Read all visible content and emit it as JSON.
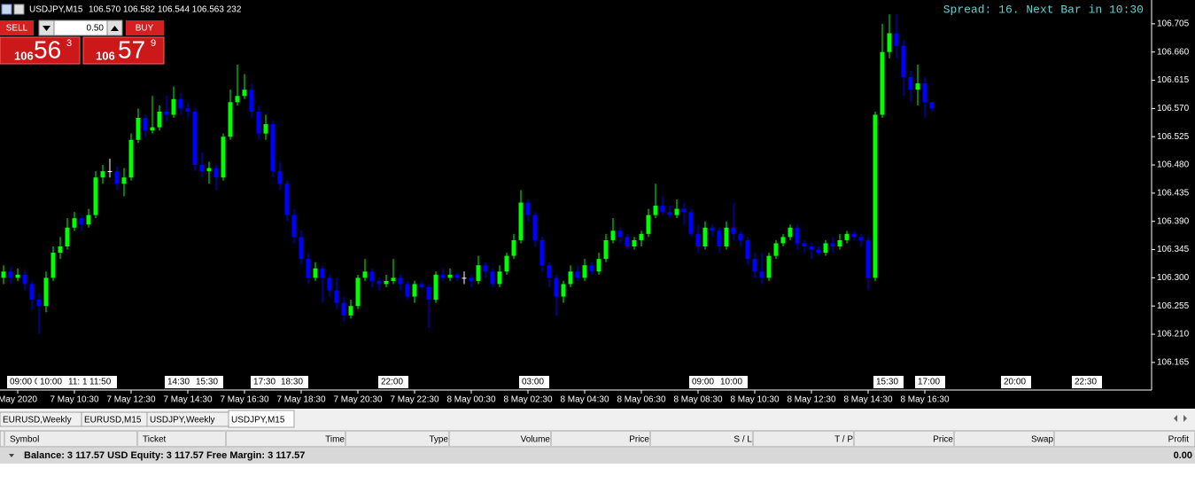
{
  "chart_data": {
    "type": "candlestick",
    "symbol": "USDJPY,M15",
    "ohlc_text": "106.570 106.582 106.544 106.563 232",
    "spread_text": "Spread: 16. Next Bar in 10:30",
    "bull_color": "#00ff00",
    "bear_color": "#0000ff",
    "ylim": [
      106.121,
      106.743
    ],
    "yticks": [
      {
        "value": 106.705,
        "label": "106.705"
      },
      {
        "value": 106.66,
        "label": "106.660"
      },
      {
        "value": 106.615,
        "label": "106.615"
      },
      {
        "value": 106.57,
        "label": "106.570"
      },
      {
        "value": 106.525,
        "label": "106.525"
      },
      {
        "value": 106.48,
        "label": "106.480"
      },
      {
        "value": 106.435,
        "label": "106.435"
      },
      {
        "value": 106.39,
        "label": "106.390"
      },
      {
        "value": 106.345,
        "label": "106.345"
      },
      {
        "value": 106.3,
        "label": "106.300"
      },
      {
        "value": 106.255,
        "label": "106.255"
      },
      {
        "value": 106.21,
        "label": "106.210"
      },
      {
        "value": 106.165,
        "label": "106.165"
      }
    ],
    "x_labels": [
      "May 2020",
      "7 May 10:30",
      "7 May 12:30",
      "7 May 14:30",
      "7 May 16:30",
      "7 May 18:30",
      "7 May 20:30",
      "7 May 22:30",
      "8 May 00:30",
      "8 May 02:30",
      "8 May 04:30",
      "8 May 06:30",
      "8 May 08:30",
      "8 May 10:30",
      "8 May 12:30",
      "8 May 14:30",
      "8 May 16:30"
    ],
    "line_labels": [
      "09:00",
      "0",
      "10:00",
      "11:",
      "1",
      "11:50",
      "14:30",
      "15:30",
      "17:30",
      "18:30",
      "22:00",
      "03:00",
      "09:00",
      "10:00",
      "15:30",
      "17:00",
      "20:00",
      "22:30"
    ],
    "open": [
      106.3,
      106.31,
      106.3,
      106.305,
      106.29,
      106.265,
      106.255,
      106.3,
      106.34,
      106.35,
      106.38,
      106.395,
      106.385,
      106.4,
      106.46,
      106.47,
      106.47,
      106.45,
      106.46,
      106.52,
      106.555,
      106.535,
      106.54,
      106.565,
      106.56,
      106.585,
      106.57,
      106.565,
      106.48,
      106.47,
      106.475,
      106.46,
      106.525,
      106.58,
      106.59,
      106.6,
      106.565,
      106.53,
      106.545,
      106.47,
      106.45,
      106.4,
      106.365,
      106.33,
      106.3,
      106.315,
      106.3,
      106.28,
      106.26,
      106.24,
      106.255,
      106.3,
      106.31,
      106.295,
      106.29,
      106.295,
      106.3,
      106.29,
      106.27,
      106.29,
      106.285,
      106.265,
      106.305,
      106.3,
      106.305,
      106.3,
      106.3,
      106.295,
      106.32,
      106.31,
      106.29,
      106.31,
      106.335,
      106.36,
      106.42,
      106.4,
      106.36,
      106.32,
      106.3,
      106.27,
      106.29,
      106.31,
      106.3,
      106.32,
      106.31,
      106.33,
      106.36,
      106.375,
      106.365,
      106.35,
      106.36,
      106.37,
      106.4,
      106.415,
      106.405,
      106.4,
      106.41,
      106.405,
      106.37,
      106.35,
      106.38,
      106.375,
      106.35,
      106.38,
      106.37,
      106.36,
      106.33,
      106.31,
      106.3,
      106.335,
      106.355,
      106.365,
      106.38,
      106.355,
      106.35,
      106.345,
      106.34,
      106.355,
      106.35,
      106.36,
      106.37,
      106.365,
      106.36,
      106.3,
      106.56,
      106.66,
      106.69,
      106.67,
      106.62,
      106.6,
      106.61,
      106.58
    ],
    "high": [
      106.32,
      106.318,
      106.315,
      106.312,
      106.295,
      106.275,
      106.31,
      106.35,
      106.365,
      106.395,
      106.405,
      106.4,
      106.41,
      106.47,
      106.48,
      106.49,
      106.478,
      106.475,
      106.53,
      106.57,
      106.56,
      106.59,
      106.575,
      106.59,
      106.605,
      106.595,
      106.58,
      106.57,
      106.5,
      106.485,
      106.48,
      106.53,
      106.6,
      106.64,
      106.625,
      106.61,
      106.575,
      106.56,
      106.55,
      106.485,
      106.455,
      106.41,
      106.375,
      106.34,
      106.325,
      106.32,
      106.305,
      106.3,
      106.27,
      106.265,
      106.305,
      106.33,
      106.315,
      106.3,
      106.305,
      106.33,
      106.305,
      106.295,
      106.295,
      106.295,
      106.29,
      106.31,
      106.315,
      106.315,
      106.308,
      106.31,
      106.305,
      106.335,
      106.325,
      106.315,
      106.32,
      106.34,
      106.37,
      106.44,
      106.425,
      106.405,
      106.365,
      106.325,
      106.305,
      106.295,
      106.32,
      106.32,
      106.33,
      106.325,
      106.34,
      106.37,
      106.395,
      106.38,
      106.37,
      106.365,
      106.375,
      106.41,
      106.45,
      106.43,
      106.415,
      106.425,
      106.42,
      106.41,
      106.385,
      106.39,
      106.385,
      106.38,
      106.39,
      106.42,
      106.375,
      106.365,
      106.34,
      106.34,
      106.34,
      106.36,
      106.37,
      106.385,
      106.385,
      106.36,
      106.355,
      106.35,
      106.36,
      106.365,
      106.37,
      106.375,
      106.375,
      106.37,
      106.365,
      106.565,
      106.705,
      106.72,
      106.72,
      106.68,
      106.63,
      106.64,
      106.62,
      106.58
    ],
    "low": [
      106.29,
      106.29,
      106.295,
      106.28,
      106.25,
      106.21,
      106.245,
      106.295,
      106.33,
      106.345,
      106.375,
      106.375,
      106.38,
      106.395,
      106.45,
      106.46,
      106.44,
      106.43,
      106.455,
      106.515,
      106.525,
      106.53,
      106.535,
      106.55,
      106.555,
      106.56,
      106.555,
      106.47,
      106.46,
      106.45,
      106.44,
      106.455,
      106.52,
      106.575,
      106.585,
      106.555,
      106.52,
      106.52,
      106.46,
      106.44,
      106.39,
      106.355,
      106.32,
      106.29,
      106.295,
      106.26,
      106.27,
      106.25,
      106.23,
      106.235,
      106.25,
      106.295,
      106.285,
      106.28,
      106.285,
      106.29,
      106.28,
      106.265,
      106.26,
      106.28,
      106.22,
      106.26,
      106.295,
      106.295,
      106.295,
      106.29,
      106.285,
      106.29,
      106.3,
      106.285,
      106.285,
      106.305,
      106.33,
      106.355,
      106.39,
      106.35,
      106.31,
      106.285,
      106.24,
      106.26,
      106.285,
      106.295,
      106.295,
      106.305,
      106.305,
      106.325,
      106.355,
      106.355,
      106.345,
      106.345,
      106.35,
      106.365,
      106.395,
      106.4,
      106.395,
      106.395,
      106.385,
      106.365,
      106.34,
      106.345,
      106.365,
      106.34,
      106.345,
      106.36,
      106.35,
      106.32,
      106.3,
      106.29,
      106.295,
      106.33,
      106.35,
      106.36,
      106.345,
      106.34,
      106.33,
      106.335,
      106.335,
      106.34,
      106.345,
      106.355,
      106.36,
      106.35,
      106.28,
      106.295,
      106.555,
      106.65,
      106.65,
      106.59,
      106.58,
      106.575,
      106.555,
      106.565
    ],
    "close": [
      106.31,
      106.3,
      106.305,
      106.29,
      106.265,
      106.255,
      106.3,
      106.34,
      106.35,
      106.38,
      106.395,
      106.385,
      106.4,
      106.46,
      106.47,
      106.47,
      106.45,
      106.46,
      106.52,
      106.555,
      106.535,
      106.54,
      106.565,
      106.56,
      106.585,
      106.57,
      106.565,
      106.48,
      106.47,
      106.475,
      106.46,
      106.525,
      106.58,
      106.59,
      106.6,
      106.565,
      106.53,
      106.545,
      106.47,
      106.45,
      106.4,
      106.365,
      106.33,
      106.3,
      106.315,
      106.3,
      106.28,
      106.26,
      106.24,
      106.255,
      106.3,
      106.31,
      106.295,
      106.29,
      106.295,
      106.3,
      106.29,
      106.27,
      106.29,
      106.285,
      106.265,
      106.305,
      106.3,
      106.305,
      106.3,
      106.3,
      106.295,
      106.32,
      106.31,
      106.29,
      106.31,
      106.335,
      106.36,
      106.42,
      106.4,
      106.36,
      106.32,
      106.3,
      106.27,
      106.29,
      106.31,
      106.3,
      106.32,
      106.31,
      106.33,
      106.36,
      106.375,
      106.365,
      106.35,
      106.36,
      106.37,
      106.4,
      106.415,
      106.405,
      106.4,
      106.41,
      106.405,
      106.37,
      106.35,
      106.38,
      106.375,
      106.35,
      106.38,
      106.37,
      106.36,
      106.33,
      106.31,
      106.3,
      106.335,
      106.355,
      106.365,
      106.38,
      106.355,
      106.35,
      106.345,
      106.34,
      106.355,
      106.35,
      106.36,
      106.37,
      106.365,
      106.36,
      106.3,
      106.56,
      106.66,
      106.69,
      106.67,
      106.62,
      106.6,
      106.61,
      106.58,
      106.57
    ]
  },
  "trade_panel": {
    "sell": "SELL",
    "buy": "BUY",
    "lot": "0.50",
    "bid": {
      "big": "106",
      "pips": "56",
      "point": "3"
    },
    "ask": {
      "big": "106",
      "pips": "57",
      "point": "9"
    }
  },
  "tabs": [
    "EURUSD,Weekly",
    "EURUSD,M15",
    "USDJPY,Weekly",
    "USDJPY,M15"
  ],
  "terminal": {
    "columns": [
      "Symbol",
      "Ticket",
      "Time",
      "Type",
      "Volume",
      "Price",
      "S / L",
      "T / P",
      "Price",
      "Swap",
      "Profit"
    ],
    "balance": "Balance: 3 117.57 USD  Equity: 3 117.57  Free Margin: 3 117.57",
    "profit": "0.00"
  }
}
